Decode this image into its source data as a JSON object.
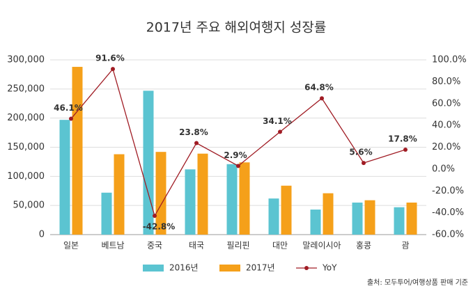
{
  "chart_data": {
    "type": "bar",
    "title": "2017년 주요 해외여행지 성장률",
    "categories": [
      "일본",
      "베트남",
      "중국",
      "태국",
      "필리핀",
      "대만",
      "말레이시아",
      "홍콩",
      "괌"
    ],
    "series": [
      {
        "name": "2016년",
        "color": "#5bc4d1",
        "values": [
          197000,
          72000,
          247000,
          112000,
          121000,
          62000,
          43000,
          55000,
          47000
        ]
      },
      {
        "name": "2017년",
        "color": "#f5a01a",
        "values": [
          288000,
          138000,
          142000,
          139000,
          124000,
          84000,
          71000,
          59000,
          55000
        ]
      },
      {
        "name": "YoY",
        "color": "#a01c24",
        "type": "line",
        "axis": "y2",
        "values": [
          46.1,
          91.6,
          -42.8,
          23.8,
          2.9,
          34.1,
          64.8,
          5.6,
          17.8
        ],
        "value_labels": [
          "46.1%",
          "91.6%",
          "-42.8%",
          "23.8%",
          "2.9%",
          "34.1%",
          "64.8%",
          "5.6%",
          "17.8%"
        ]
      }
    ],
    "ylim": [
      0,
      300000
    ],
    "yticks": [
      0,
      {
        "value": 50000,
        "label": "50,000"
      },
      {
        "value": 100000,
        "label": "100,000"
      },
      {
        "value": 150000,
        "label": "150,000"
      },
      {
        "value": 200000,
        "label": "200,000"
      },
      {
        "value": 250000,
        "label": "250,000"
      },
      {
        "value": 300000,
        "label": "300,000"
      }
    ],
    "y2lim": [
      -60,
      100
    ],
    "y2ticks": [
      {
        "value": -60,
        "label": "-60.0%"
      },
      {
        "value": -40,
        "label": "-40.0%"
      },
      {
        "value": -20,
        "label": "-20.0%"
      },
      {
        "value": 0,
        "label": "0.0%"
      },
      {
        "value": 20,
        "label": "20.0%"
      },
      {
        "value": 40,
        "label": "40.0%"
      },
      {
        "value": 60,
        "label": "60.0%"
      },
      {
        "value": 80,
        "label": "80.0%"
      },
      {
        "value": 100,
        "label": "100.0%"
      }
    ],
    "grid": true,
    "source": "출처: 모두투어/여행상품 판매 기준"
  }
}
